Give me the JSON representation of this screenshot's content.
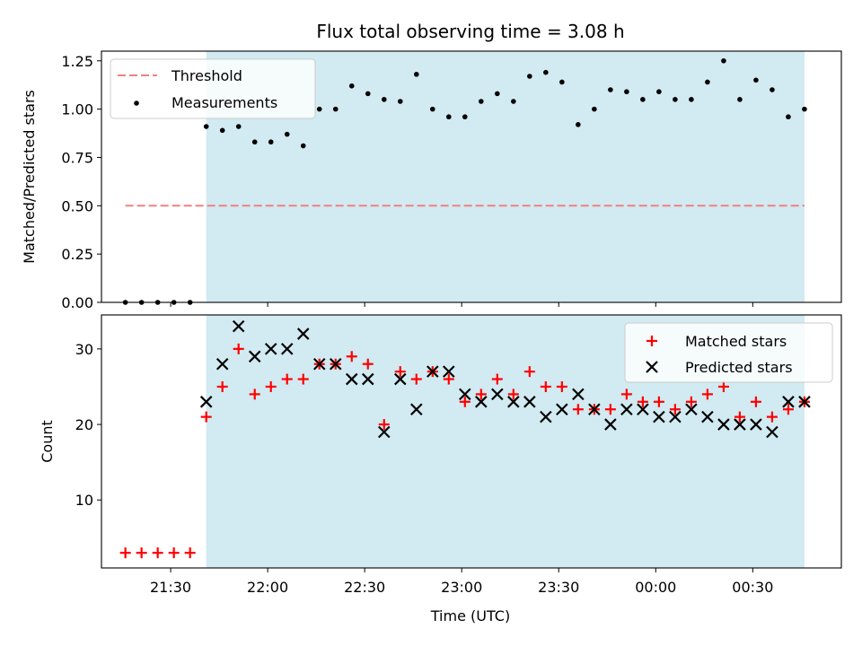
{
  "chart_data": [
    {
      "type": "scatter",
      "title": "Flux total observing time = 3.08 h",
      "ylabel": "Matched/Predicted stars",
      "xlabel": "",
      "ylim": [
        0,
        1.3
      ],
      "yticks": [
        "0.00",
        "0.25",
        "0.50",
        "0.75",
        "1.00",
        "1.25"
      ],
      "ytick_values": [
        0,
        0.25,
        0.5,
        0.75,
        1.0,
        1.25
      ],
      "shaded_span": {
        "start": "21:41",
        "end": "00:46",
        "color": "#add8e6"
      },
      "threshold": {
        "name": "Threshold",
        "value": 0.5,
        "from": "21:16",
        "to": "00:46",
        "color": "#f08080"
      },
      "legend": "top-left",
      "series": [
        {
          "name": "Measurements",
          "color": "#000000",
          "x": [
            "21:16",
            "21:21",
            "21:26",
            "21:31",
            "21:36",
            "21:41",
            "21:46",
            "21:51",
            "21:56",
            "22:01",
            "22:06",
            "22:11",
            "22:16",
            "22:21",
            "22:26",
            "22:31",
            "22:36",
            "22:41",
            "22:46",
            "22:51",
            "22:56",
            "23:01",
            "23:06",
            "23:11",
            "23:16",
            "23:21",
            "23:26",
            "23:31",
            "23:36",
            "23:41",
            "23:46",
            "23:51",
            "23:56",
            "00:01",
            "00:06",
            "00:11",
            "00:16",
            "00:21",
            "00:26",
            "00:31",
            "00:36",
            "00:41",
            "00:46"
          ],
          "values": [
            0,
            0,
            0,
            0,
            0,
            0.91,
            0.89,
            0.91,
            0.83,
            0.83,
            0.87,
            0.81,
            1.0,
            1.0,
            1.12,
            1.08,
            1.05,
            1.04,
            1.18,
            1.0,
            0.96,
            0.96,
            1.04,
            1.08,
            1.04,
            1.17,
            1.19,
            1.14,
            0.92,
            1.0,
            1.1,
            1.09,
            1.05,
            1.09,
            1.05,
            1.05,
            1.14,
            1.25,
            1.05,
            1.15,
            1.1,
            0.96,
            1.0
          ]
        }
      ]
    },
    {
      "type": "scatter",
      "title": "",
      "ylabel": "Count",
      "xlabel": "Time (UTC)",
      "ylim": [
        1,
        34.5
      ],
      "yticks": [
        "10",
        "20",
        "30"
      ],
      "ytick_values": [
        10,
        20,
        30
      ],
      "xticks": [
        "21:30",
        "22:00",
        "22:30",
        "23:00",
        "23:30",
        "00:00",
        "00:30"
      ],
      "shaded_span": {
        "start": "21:41",
        "end": "00:46",
        "color": "#add8e6"
      },
      "legend": "top-right",
      "x": [
        "21:16",
        "21:21",
        "21:26",
        "21:31",
        "21:36",
        "21:41",
        "21:46",
        "21:51",
        "21:56",
        "22:01",
        "22:06",
        "22:11",
        "22:16",
        "22:21",
        "22:26",
        "22:31",
        "22:36",
        "22:41",
        "22:46",
        "22:51",
        "22:56",
        "23:01",
        "23:06",
        "23:11",
        "23:16",
        "23:21",
        "23:26",
        "23:31",
        "23:36",
        "23:41",
        "23:46",
        "23:51",
        "23:56",
        "00:01",
        "00:06",
        "00:11",
        "00:16",
        "00:21",
        "00:26",
        "00:31",
        "00:36",
        "00:41",
        "00:46"
      ],
      "series": [
        {
          "name": "Matched stars",
          "marker": "+",
          "color": "#ff0000",
          "values": [
            3,
            3,
            3,
            3,
            3,
            21,
            25,
            30,
            24,
            25,
            26,
            26,
            28,
            28,
            29,
            28,
            20,
            27,
            26,
            27,
            26,
            23,
            24,
            26,
            24,
            27,
            25,
            25,
            22,
            22,
            22,
            24,
            23,
            23,
            22,
            23,
            24,
            25,
            21,
            23,
            21,
            22,
            23
          ]
        },
        {
          "name": "Predicted stars",
          "marker": "x",
          "color": "#000000",
          "values": [
            null,
            null,
            null,
            null,
            null,
            23,
            28,
            33,
            29,
            30,
            30,
            32,
            28,
            28,
            26,
            26,
            19,
            26,
            22,
            27,
            27,
            24,
            23,
            24,
            23,
            23,
            21,
            22,
            24,
            22,
            20,
            22,
            22,
            21,
            21,
            22,
            21,
            20,
            20,
            20,
            19,
            23,
            23
          ]
        }
      ]
    }
  ]
}
